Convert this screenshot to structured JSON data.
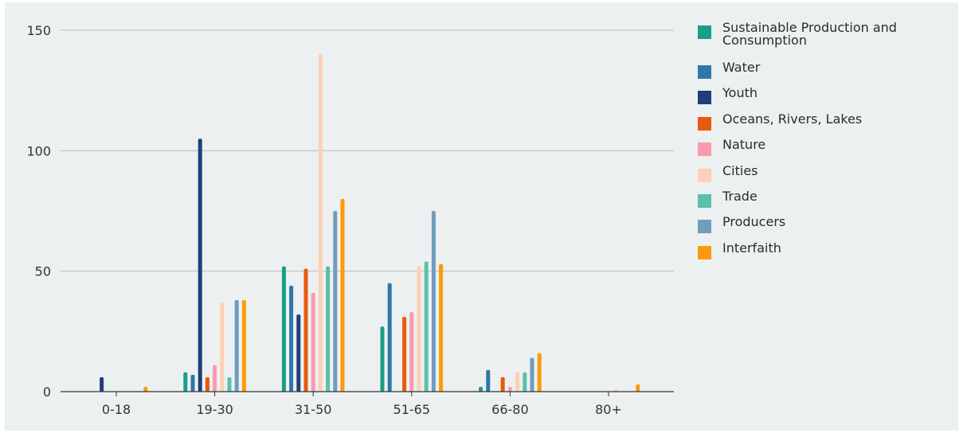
{
  "chart_data": {
    "type": "bar",
    "categories": [
      "0-18",
      "19-30",
      "31-50",
      "51-65",
      "66-80",
      "80+"
    ],
    "ylim": [
      0,
      150
    ],
    "yticks": [
      0,
      50,
      100,
      150
    ],
    "grid": true,
    "legend_position": "right",
    "series": [
      {
        "name": "Sustainable Production and Consumption",
        "color": "#1b9e84",
        "values": [
          0,
          8,
          52,
          27,
          2,
          0
        ]
      },
      {
        "name": "Water",
        "color": "#2e77a8",
        "values": [
          0,
          7,
          44,
          45,
          9,
          0
        ]
      },
      {
        "name": "Youth",
        "color": "#1f3f7a",
        "values": [
          6,
          105,
          32,
          0,
          0,
          0
        ]
      },
      {
        "name": "Oceans, Rivers, Lakes",
        "color": "#e8590c",
        "values": [
          0,
          6,
          51,
          31,
          6,
          0
        ]
      },
      {
        "name": "Nature",
        "color": "#f79bae",
        "values": [
          0,
          11,
          41,
          33,
          2,
          0
        ]
      },
      {
        "name": "Cities",
        "color": "#fdd0b5",
        "values": [
          0,
          37,
          140,
          52,
          8,
          1
        ]
      },
      {
        "name": "Trade",
        "color": "#5cbfab",
        "values": [
          0,
          6,
          52,
          54,
          8,
          0
        ]
      },
      {
        "name": "Producers",
        "color": "#6f9dbd",
        "values": [
          0,
          38,
          75,
          75,
          14,
          0
        ]
      },
      {
        "name": "Interfaith",
        "color": "#fb9a0c",
        "values": [
          2,
          38,
          80,
          53,
          16,
          3
        ]
      }
    ]
  }
}
